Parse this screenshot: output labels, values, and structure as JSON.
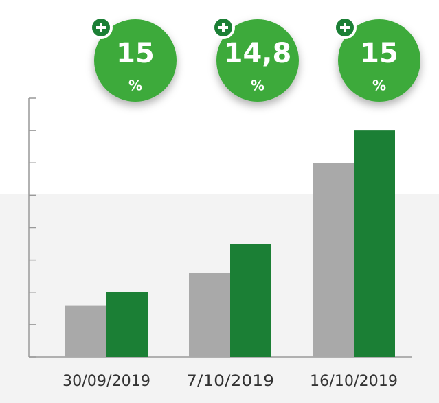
{
  "chart_data": {
    "type": "bar",
    "categories": [
      "30/09/2019",
      "7/10/2019",
      "16/10/2019"
    ],
    "series": [
      {
        "color": "#a9a9a9",
        "values": [
          1.6,
          2.6,
          6.0
        ]
      },
      {
        "color": "#1b7f35",
        "values": [
          2.0,
          3.5,
          7.0
        ]
      }
    ],
    "ylim": [
      0,
      8
    ],
    "yticks": [
      0,
      1,
      2,
      3,
      4,
      5,
      6,
      7,
      8
    ],
    "grid": false,
    "badges": {
      "color": "#3daa3a",
      "values": [
        15,
        14.8,
        15
      ],
      "value_labels": [
        "15",
        "14,8",
        "15"
      ],
      "unit": "%"
    }
  }
}
